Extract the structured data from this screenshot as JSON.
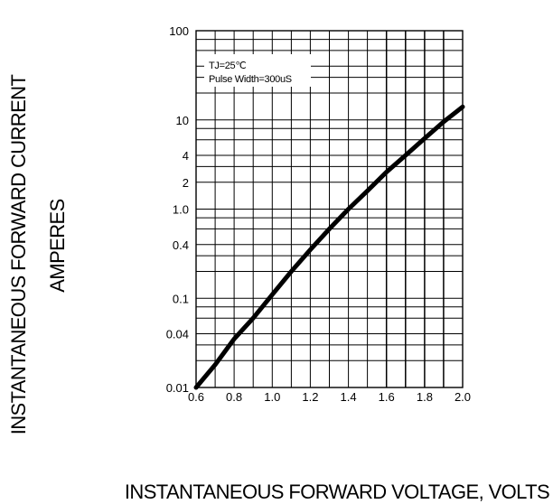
{
  "chart_data": {
    "type": "line",
    "title": "",
    "xlabel": "INSTANTANEOUS FORWARD VOLTAGE, VOLTS",
    "ylabel": [
      "INSTANTANEOUS FORWARD CURRENT",
      "AMPERES"
    ],
    "xlim": [
      0.6,
      2.0
    ],
    "ylim": [
      0.01,
      100
    ],
    "yscale": "log",
    "grid": true,
    "legend": "none",
    "x_ticks": [
      "0.6",
      "0.8",
      "1.0",
      "1.2",
      "1.4",
      "1.6",
      "1.8",
      "2.0"
    ],
    "y_ticks": [
      "100",
      "10",
      "4",
      "2",
      "1.0",
      "0.4",
      "0.1",
      "0.04",
      "0.01"
    ],
    "annotations": [
      "TJ=25℃",
      "Pulse Width=300uS"
    ],
    "series": [
      {
        "x": [
          0.6,
          0.7,
          0.8,
          0.9,
          1.0,
          1.1,
          1.2,
          1.3,
          1.4,
          1.5,
          1.6,
          1.7,
          1.8,
          1.9,
          2.0
        ],
        "y": [
          0.01,
          0.018,
          0.035,
          0.06,
          0.11,
          0.2,
          0.35,
          0.6,
          1.0,
          1.6,
          2.6,
          4.0,
          6.2,
          9.5,
          14.0
        ]
      }
    ],
    "line_color": "#000000"
  }
}
